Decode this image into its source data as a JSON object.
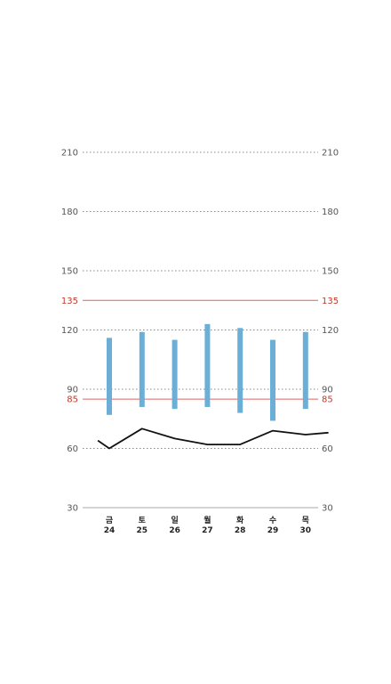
{
  "chart_data": {
    "type": "bar",
    "y_ticks": [
      30,
      60,
      90,
      120,
      150,
      180,
      210
    ],
    "ylim": [
      30,
      210
    ],
    "reference_lines": [
      85,
      135
    ],
    "categories": [
      {
        "day": "금",
        "date": "24"
      },
      {
        "day": "토",
        "date": "25"
      },
      {
        "day": "일",
        "date": "26"
      },
      {
        "day": "월",
        "date": "27"
      },
      {
        "day": "화",
        "date": "28"
      },
      {
        "day": "수",
        "date": "29"
      },
      {
        "day": "목",
        "date": "30"
      }
    ],
    "ranges": [
      {
        "low": 77,
        "high": 116
      },
      {
        "low": 81,
        "high": 119
      },
      {
        "low": 80,
        "high": 115
      },
      {
        "low": 81,
        "high": 123
      },
      {
        "low": 78,
        "high": 121
      },
      {
        "low": 74,
        "high": 115
      },
      {
        "low": 80,
        "high": 119
      }
    ],
    "line_x": [
      -0.35,
      0,
      1,
      2,
      3,
      4,
      5,
      6,
      6.7
    ],
    "line_y": [
      64,
      60,
      70,
      65,
      62,
      62,
      69,
      67,
      68
    ],
    "grid": true,
    "colors": {
      "bar": "#6baed6",
      "line": "#111111",
      "reference": "#e06060",
      "grid": "#888888",
      "axis": "#aaaaaa"
    }
  }
}
